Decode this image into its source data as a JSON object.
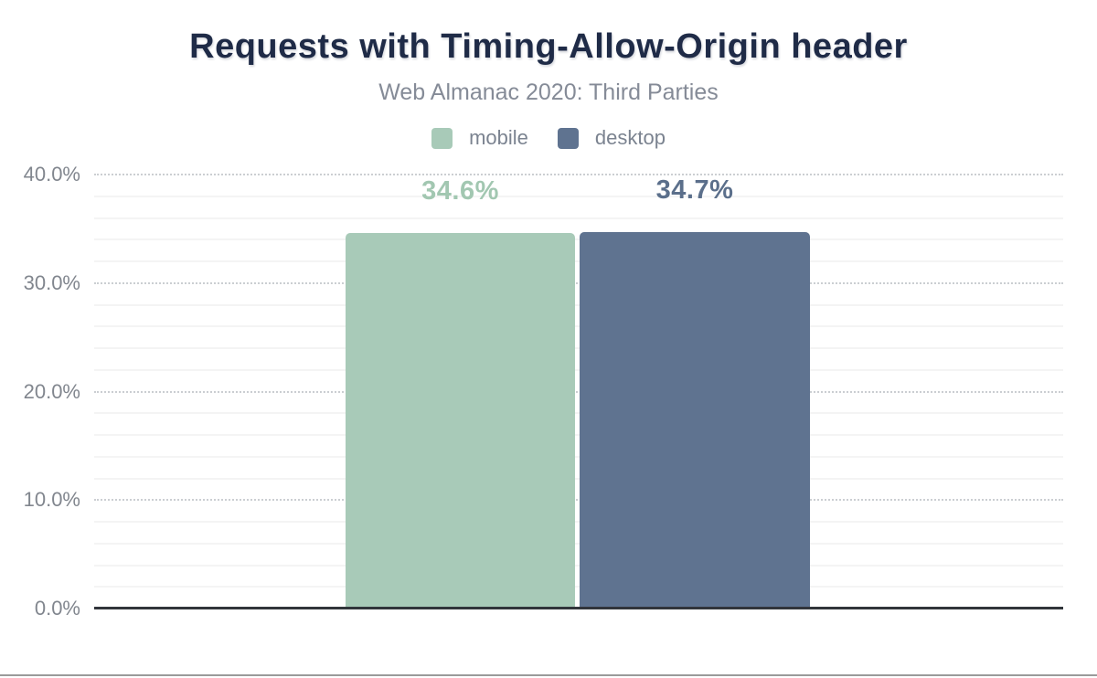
{
  "title": "Requests with Timing-Allow-Origin header",
  "subtitle": "Web Almanac 2020: Third Parties",
  "colors": {
    "title": "#1f2b47",
    "subtitle": "#858b97",
    "axis_label": "#81868e",
    "legend_label": "#7b8390",
    "axis_line": "#31353b",
    "grid_major": "#cbced2",
    "grid_minor": "#f4f4f4",
    "mobile": "#a8cab8",
    "desktop": "#5f7390",
    "mobile_value_label": "#a2c7b1",
    "desktop_value_label": "#5b6f8b"
  },
  "chart_data": {
    "type": "bar",
    "title": "Requests with Timing-Allow-Origin header",
    "subtitle": "Web Almanac 2020: Third Parties",
    "categories": [
      ""
    ],
    "series": [
      {
        "name": "mobile",
        "values": [
          34.6
        ],
        "display_values": [
          "34.6%"
        ],
        "color": "#a8cab8",
        "label_color": "#a2c7b1"
      },
      {
        "name": "desktop",
        "values": [
          34.7
        ],
        "display_values": [
          "34.7%"
        ],
        "color": "#5f7390",
        "label_color": "#5b6f8b"
      }
    ],
    "xlabel": "",
    "ylabel": "",
    "ylim": [
      0,
      40
    ],
    "yticks": [
      {
        "value": 0,
        "label": "0.0%"
      },
      {
        "value": 10,
        "label": "10.0%"
      },
      {
        "value": 20,
        "label": "20.0%"
      },
      {
        "value": 30,
        "label": "30.0%"
      },
      {
        "value": 40,
        "label": "40.0%"
      }
    ],
    "y_minor_step": 2,
    "grid": "horizontal",
    "legend_position": "top",
    "legend": [
      "mobile",
      "desktop"
    ]
  }
}
